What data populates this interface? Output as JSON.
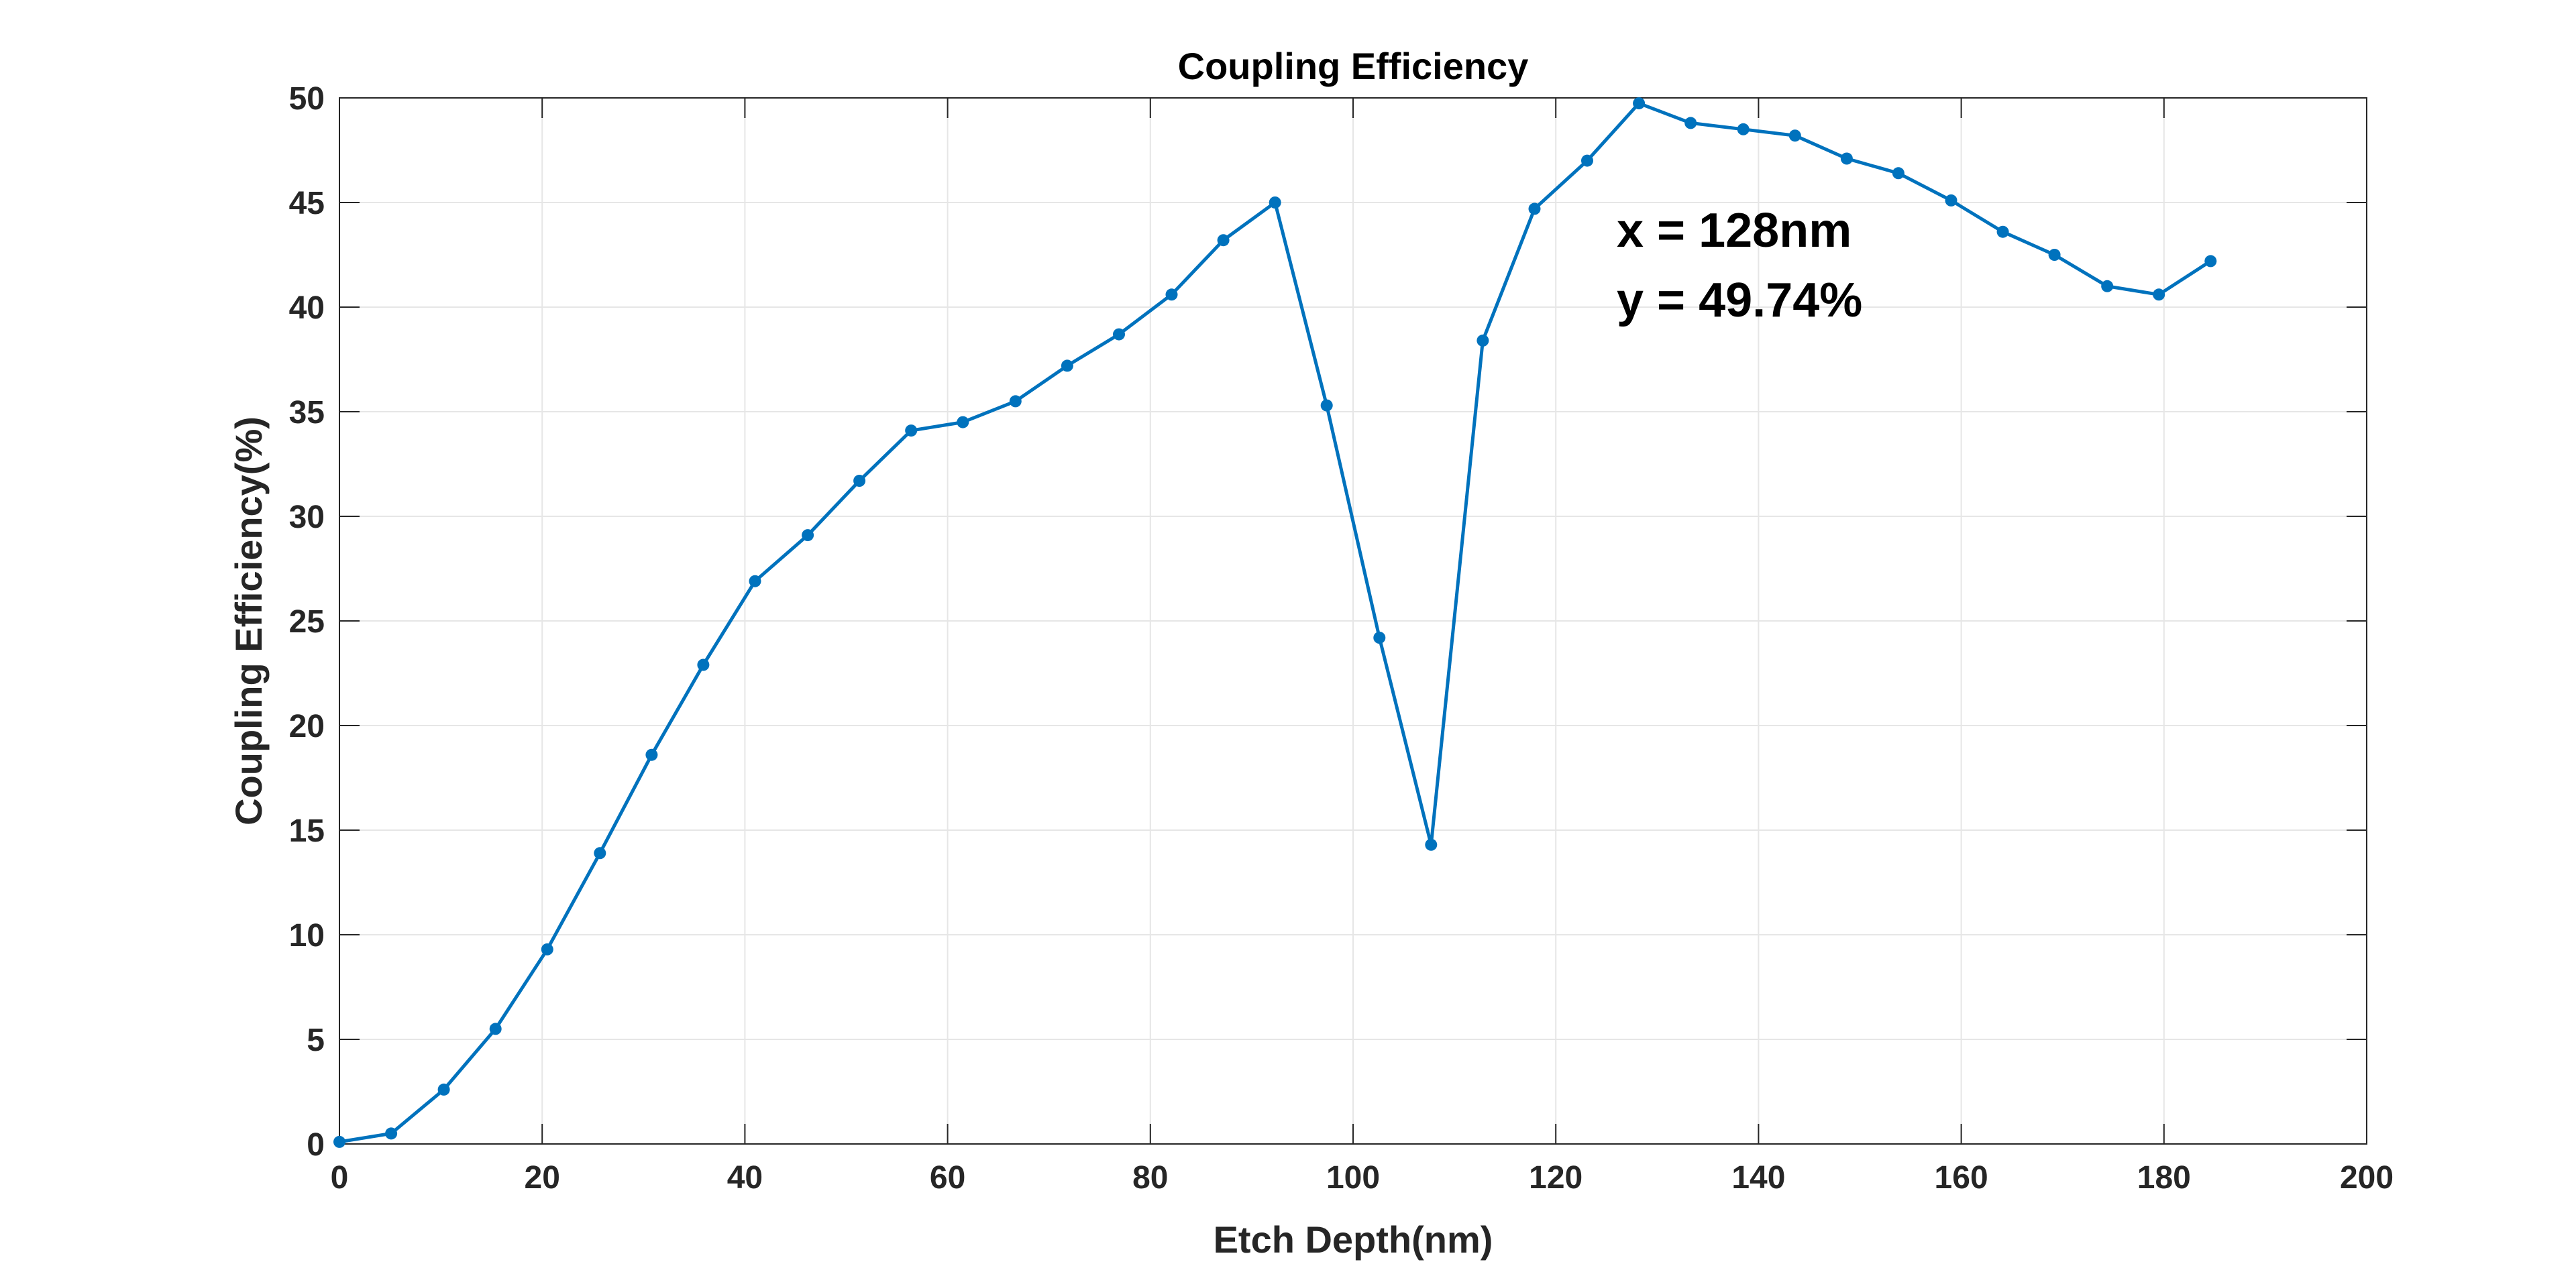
{
  "chart_data": {
    "type": "line",
    "title": "Coupling Efficiency",
    "xlabel": "Etch Depth(nm)",
    "ylabel": "Coupling Efficiency(%)",
    "xlim": [
      0,
      200
    ],
    "ylim": [
      0,
      50
    ],
    "x_ticks": [
      0,
      20,
      40,
      60,
      80,
      100,
      120,
      140,
      160,
      180,
      200
    ],
    "y_ticks": [
      0,
      5,
      10,
      15,
      20,
      25,
      30,
      35,
      40,
      45,
      50
    ],
    "grid": true,
    "series": [
      {
        "name": "Coupling Efficiency",
        "color": "#0072BD",
        "x": [
          0,
          5.1,
          10.3,
          15.4,
          20.5,
          25.7,
          30.8,
          35.9,
          41.0,
          46.2,
          51.3,
          56.4,
          61.5,
          66.7,
          71.8,
          76.9,
          82.1,
          87.2,
          92.3,
          97.4,
          102.6,
          107.7,
          112.8,
          117.9,
          123.1,
          128.2,
          133.3,
          138.5,
          143.6,
          148.7,
          153.8,
          159.0,
          164.1,
          169.2,
          174.4,
          179.5,
          184.6
        ],
        "y": [
          0.1,
          0.5,
          2.6,
          5.5,
          9.3,
          13.9,
          18.6,
          22.9,
          26.9,
          29.1,
          31.7,
          34.1,
          34.5,
          35.5,
          37.2,
          38.7,
          40.6,
          43.2,
          45.0,
          35.3,
          24.2,
          14.3,
          38.4,
          44.7,
          47.0,
          49.74,
          48.8,
          48.5,
          48.2,
          47.1,
          46.4,
          45.1,
          43.6,
          42.5,
          41.0,
          40.6,
          42.2
        ]
      }
    ],
    "annotation": {
      "line1": "x = 128nm",
      "line2": "y = 49.74%"
    }
  }
}
